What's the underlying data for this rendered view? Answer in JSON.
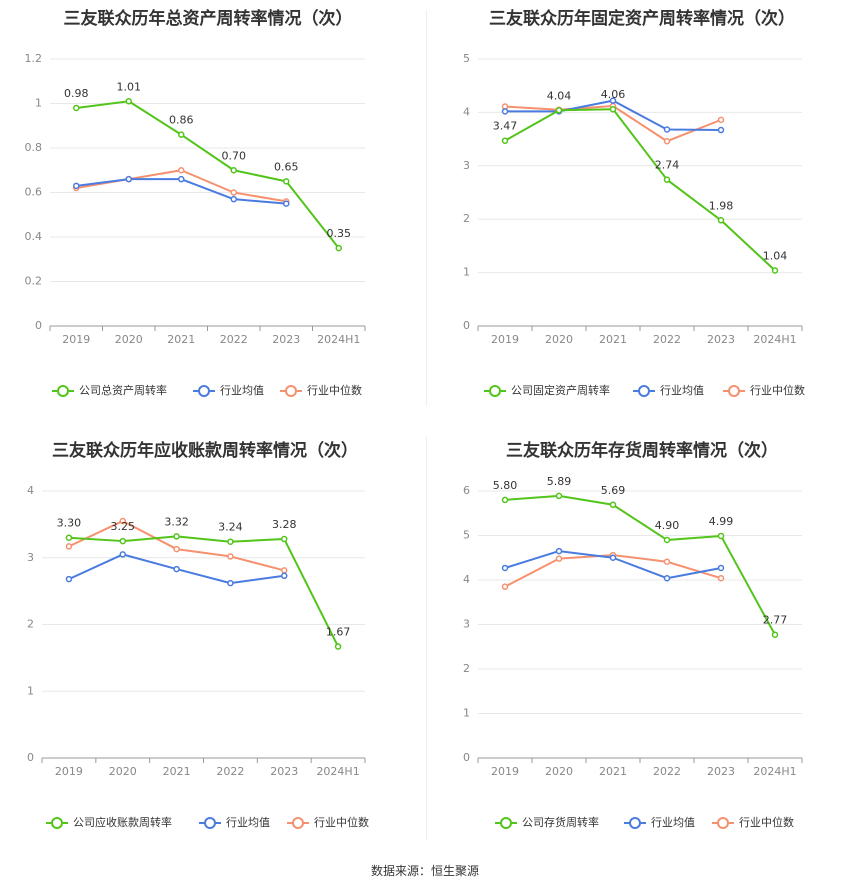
{
  "colors": {
    "company": "#52c41a",
    "avg": "#4a7be0",
    "median": "#f5916f",
    "grid": "#e8e8e8",
    "axis": "#999999"
  },
  "source_text": "数据来源：恒生聚源",
  "chart_data": [
    {
      "type": "line",
      "title": "三友联众历年总资产周转率情况（次）",
      "categories": [
        "2019",
        "2020",
        "2021",
        "2022",
        "2023",
        "2024H1"
      ],
      "ylim": [
        0,
        1.2
      ],
      "yticks": [
        "0",
        "0.2",
        "0.4",
        "0.6",
        "0.8",
        "1",
        "1.2"
      ],
      "grid": true,
      "legend_position": "bottom",
      "series": [
        {
          "name": "公司总资产周转率",
          "color": "#52c41a",
          "values": [
            0.98,
            1.01,
            0.86,
            0.7,
            0.65,
            0.35
          ],
          "labels": [
            "0.98",
            "1.01",
            "0.86",
            "0.70",
            "0.65",
            "0.35"
          ]
        },
        {
          "name": "行业均值",
          "color": "#4a7be0",
          "values": [
            0.63,
            0.66,
            0.66,
            0.57,
            0.55,
            null
          ]
        },
        {
          "name": "行业中位数",
          "color": "#f5916f",
          "values": [
            0.62,
            0.66,
            0.7,
            0.6,
            0.56,
            null
          ]
        }
      ]
    },
    {
      "type": "line",
      "title": "三友联众历年固定资产周转率情况（次）",
      "categories": [
        "2019",
        "2020",
        "2021",
        "2022",
        "2023",
        "2024H1"
      ],
      "ylim": [
        0,
        5
      ],
      "yticks": [
        "0",
        "1",
        "2",
        "3",
        "4",
        "5"
      ],
      "grid": true,
      "legend_position": "bottom",
      "series": [
        {
          "name": "公司固定资产周转率",
          "color": "#52c41a",
          "values": [
            3.47,
            4.04,
            4.06,
            2.74,
            1.98,
            1.04
          ],
          "labels": [
            "3.47",
            "4.04",
            "4.06",
            "2.74",
            "1.98",
            "1.04"
          ]
        },
        {
          "name": "行业均值",
          "color": "#4a7be0",
          "values": [
            4.02,
            4.02,
            4.22,
            3.68,
            3.67,
            null
          ]
        },
        {
          "name": "行业中位数",
          "color": "#f5916f",
          "values": [
            4.11,
            4.05,
            4.12,
            3.46,
            3.86,
            null
          ]
        }
      ]
    },
    {
      "type": "line",
      "title": "三友联众历年应收账款周转率情况（次）",
      "categories": [
        "2019",
        "2020",
        "2021",
        "2022",
        "2023",
        "2024H1"
      ],
      "ylim": [
        0,
        4
      ],
      "yticks": [
        "0",
        "1",
        "2",
        "3",
        "4"
      ],
      "grid": true,
      "legend_position": "bottom",
      "series": [
        {
          "name": "公司应收账款周转率",
          "color": "#52c41a",
          "values": [
            3.3,
            3.25,
            3.32,
            3.24,
            3.28,
            1.67
          ],
          "labels": [
            "3.30",
            "3.25",
            "3.32",
            "3.24",
            "3.28",
            "1.67"
          ]
        },
        {
          "name": "行业均值",
          "color": "#4a7be0",
          "values": [
            2.68,
            3.05,
            2.83,
            2.62,
            2.73,
            null
          ]
        },
        {
          "name": "行业中位数",
          "color": "#f5916f",
          "values": [
            3.17,
            3.55,
            3.13,
            3.02,
            2.81,
            null
          ]
        }
      ]
    },
    {
      "type": "line",
      "title": "三友联众历年存货周转率情况（次）",
      "categories": [
        "2019",
        "2020",
        "2021",
        "2022",
        "2023",
        "2024H1"
      ],
      "ylim": [
        0,
        6
      ],
      "yticks": [
        "0",
        "1",
        "2",
        "3",
        "4",
        "5",
        "6"
      ],
      "grid": true,
      "legend_position": "bottom",
      "series": [
        {
          "name": "公司存货周转率",
          "color": "#52c41a",
          "values": [
            5.8,
            5.89,
            5.69,
            4.9,
            4.99,
            2.77
          ],
          "labels": [
            "5.80",
            "5.89",
            "5.69",
            "4.90",
            "4.99",
            "2.77"
          ]
        },
        {
          "name": "行业均值",
          "color": "#4a7be0",
          "values": [
            4.27,
            4.65,
            4.5,
            4.04,
            4.27,
            null
          ]
        },
        {
          "name": "行业中位数",
          "color": "#f5916f",
          "values": [
            3.85,
            4.48,
            4.56,
            4.41,
            4.04,
            null
          ]
        }
      ]
    }
  ]
}
